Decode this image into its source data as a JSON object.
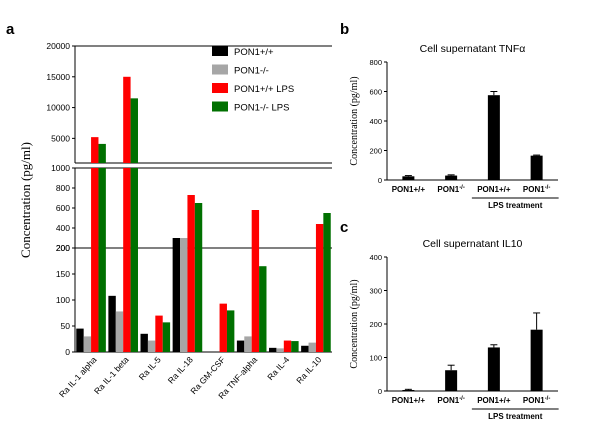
{
  "panels": {
    "a": "a",
    "b": "b",
    "c": "c"
  },
  "chart_data": [
    {
      "id": "a",
      "type": "bar",
      "xlabel": "",
      "ylabel": "Concentration (pg/ml)",
      "categories": [
        "Ra IL-1 alpha",
        "Ra IL-1 beta",
        "Ra IL-5",
        "Ra IL-18",
        "Ra GM-CSF",
        "Ra TNF-alpha",
        "Ra IL-4",
        "Ra IL-10"
      ],
      "series": [
        {
          "name": "PON1+/+",
          "color": "#000000",
          "values": [
            45,
            108,
            35,
            300,
            0,
            22,
            8,
            12
          ]
        },
        {
          "name": "PON1-/-",
          "color": "#a6a6a6",
          "values": [
            30,
            78,
            22,
            300,
            0,
            30,
            7,
            18
          ]
        },
        {
          "name": "PON1+/+ LPS",
          "color": "#ff0000",
          "values": [
            5200,
            15000,
            70,
            730,
            93,
            580,
            22,
            440
          ]
        },
        {
          "name": "PON1-/- LPS",
          "color": "#007000",
          "values": [
            4100,
            11500,
            57,
            650,
            80,
            165,
            21,
            550
          ]
        }
      ],
      "y_segments": [
        {
          "range": [
            0,
            200
          ],
          "ticks": [
            "0",
            "50",
            "100",
            "150",
            "200"
          ]
        },
        {
          "range": [
            200,
            1000
          ],
          "ticks": [
            "200",
            "400",
            "600",
            "800",
            "1000"
          ]
        },
        {
          "range": [
            1000,
            20000
          ],
          "ticks": [
            "5000",
            "10000",
            "15000",
            "20000"
          ]
        }
      ],
      "legend_position": "top-right"
    },
    {
      "id": "b",
      "type": "bar",
      "title": "Cell supernatant TNFα",
      "ylabel": "Concentration (pg/ml)",
      "categories": [
        "PON1+/+",
        "PON1",
        "PON1+/+",
        "PON1"
      ],
      "category_superscripts": [
        "",
        "-/-",
        "",
        "-/-"
      ],
      "values": [
        25,
        30,
        575,
        165
      ],
      "errors": [
        5,
        5,
        25,
        4
      ],
      "ylim": [
        0,
        800
      ],
      "yticks": [
        "0",
        "200",
        "400",
        "600",
        "800"
      ],
      "group_label": "LPS treatment"
    },
    {
      "id": "c",
      "type": "bar",
      "title": "Cell supernatant IL10",
      "ylabel": "Concentration (pg/ml)",
      "categories": [
        "PON1+/+",
        "PON1",
        "PON1+/+",
        "PON1"
      ],
      "category_superscripts": [
        "",
        "-/-",
        "",
        "-/-"
      ],
      "values": [
        3,
        62,
        130,
        183
      ],
      "errors": [
        2,
        15,
        8,
        50
      ],
      "ylim": [
        0,
        400
      ],
      "yticks": [
        "0",
        "100",
        "200",
        "300",
        "400"
      ],
      "group_label": "LPS treatment"
    }
  ]
}
